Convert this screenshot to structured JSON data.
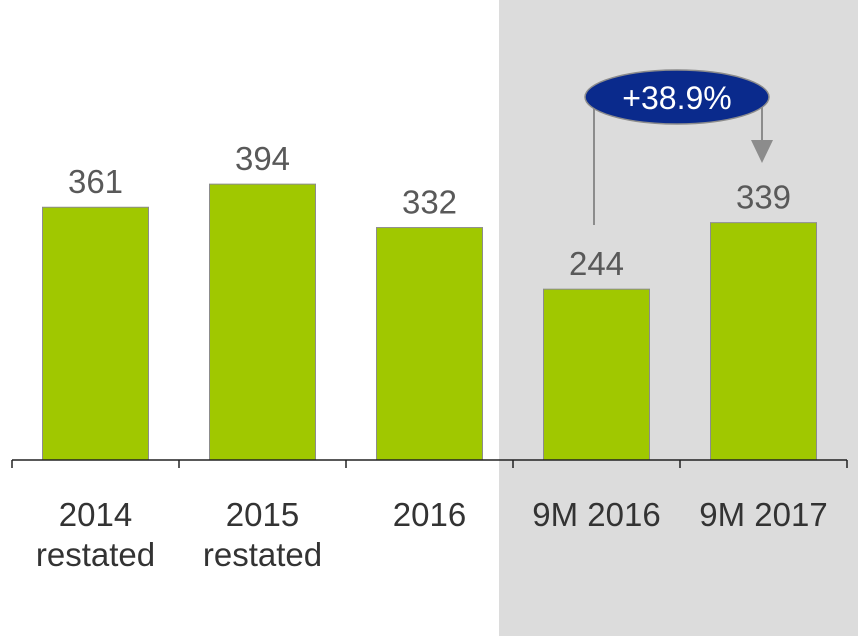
{
  "chart_data": {
    "type": "bar",
    "categories": [
      "2014 restated",
      "2015 restated",
      "2016",
      "9M 2016",
      "9M 2017"
    ],
    "values": [
      361,
      394,
      332,
      244,
      339
    ],
    "color": "#a0c800",
    "ylim": [
      0,
      657
    ],
    "annotation": "+38.9%"
  }
}
